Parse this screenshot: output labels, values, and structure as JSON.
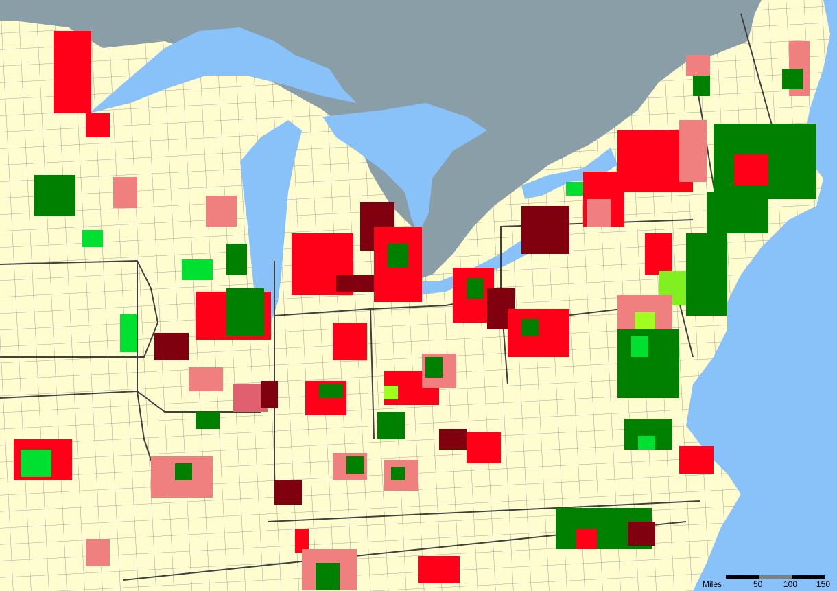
{
  "map": {
    "colors": {
      "land": "#fffdd0",
      "canada": "#8a9ea8",
      "water": "#88c2f8",
      "dark_red": "#800010",
      "red": "#ff0018",
      "light_red": "#f08080",
      "dark_green": "#008000",
      "green": "#00e030",
      "yellow_green": "#a0ff20",
      "boundary": "#404040"
    },
    "scale_bar": {
      "unit": "Miles",
      "ticks": [
        "50",
        "100",
        "150"
      ]
    }
  }
}
